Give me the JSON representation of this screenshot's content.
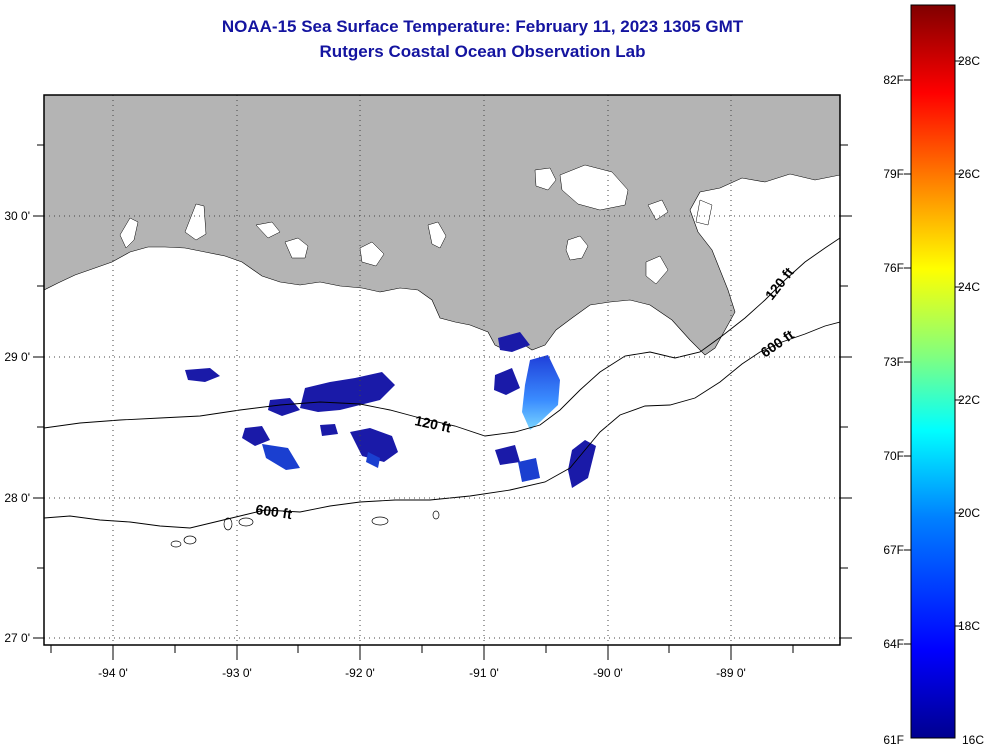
{
  "title": "NOAA-15 Sea Surface Temperature:  February 11, 2023 1305 GMT",
  "subtitle": "Rutgers Coastal Ocean Observation Lab",
  "map": {
    "lon_labels": [
      "-94 0'",
      "-93 0'",
      "-92 0'",
      "-91 0'",
      "-90 0'",
      "-89 0'"
    ],
    "lat_labels": [
      "30 0'",
      "29 0'",
      "28 0'",
      "27 0'"
    ],
    "grid": true,
    "land_color": "#b4b4b4",
    "contours": [
      {
        "depth": "120 ft"
      },
      {
        "depth": "600 ft"
      }
    ],
    "depth_labels": [
      "120 ft",
      "120 ft",
      "600 ft",
      "600 ft"
    ]
  },
  "colorbar": {
    "fahrenheit_labels": [
      "82F",
      "79F",
      "76F",
      "73F",
      "70F",
      "67F",
      "64F",
      "61F"
    ],
    "celsius_labels": [
      "28C",
      "26C",
      "24C",
      "22C",
      "20C",
      "18C",
      "16C"
    ],
    "range_c": [
      16,
      29
    ],
    "colors": [
      "#00008f",
      "#0000ff",
      "#0080ff",
      "#00ffff",
      "#80ff80",
      "#ffff00",
      "#ff8000",
      "#ff0000",
      "#800000"
    ]
  }
}
